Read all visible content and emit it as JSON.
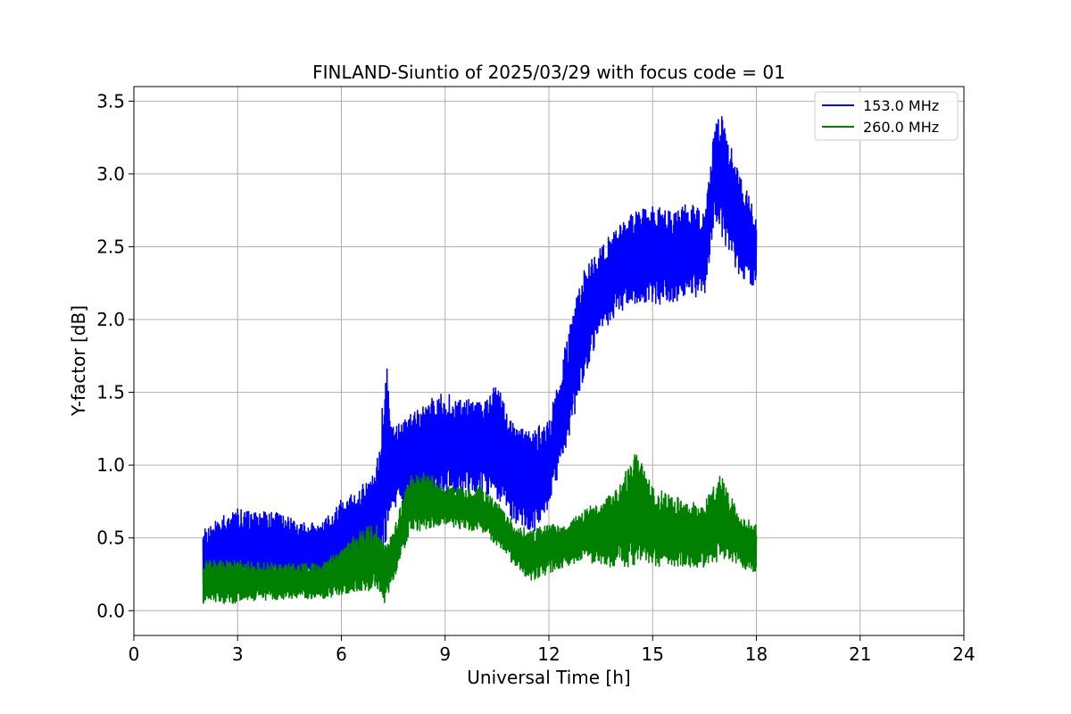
{
  "chart_data": {
    "type": "line",
    "title": "FINLAND-Siuntio of 2025/03/29 with focus code = 01",
    "xlabel": "Universal Time [h]",
    "ylabel": "Y-factor [dB]",
    "xlim": [
      0,
      24
    ],
    "ylim": [
      -0.17,
      3.6
    ],
    "xticks": [
      0,
      3,
      6,
      9,
      12,
      15,
      18,
      21,
      24
    ],
    "xtick_labels": [
      "0",
      "3",
      "6",
      "9",
      "12",
      "15",
      "18",
      "21",
      "24"
    ],
    "yticks": [
      0.0,
      0.5,
      1.0,
      1.5,
      2.0,
      2.5,
      3.0,
      3.5
    ],
    "ytick_labels": [
      "0.0",
      "0.5",
      "1.0",
      "1.5",
      "2.0",
      "2.5",
      "3.0",
      "3.5"
    ],
    "grid": true,
    "legend_position": "top-right",
    "series": [
      {
        "name": " 153.0 MHz",
        "color": "#0000ff",
        "x": [
          2.0,
          2.5,
          3.0,
          3.5,
          4.0,
          4.5,
          5.0,
          5.5,
          6.0,
          6.5,
          7.0,
          7.3,
          7.5,
          8.0,
          8.5,
          9.0,
          9.5,
          10.0,
          10.5,
          11.0,
          11.5,
          12.0,
          12.5,
          13.0,
          13.5,
          14.0,
          14.5,
          15.0,
          15.5,
          16.0,
          16.5,
          16.8,
          17.0,
          17.5,
          18.0
        ],
        "low": [
          0.05,
          0.2,
          0.2,
          0.2,
          0.2,
          0.2,
          0.2,
          0.2,
          0.25,
          0.3,
          0.35,
          0.4,
          0.7,
          0.75,
          0.8,
          0.8,
          0.8,
          0.8,
          0.75,
          0.6,
          0.5,
          0.7,
          1.1,
          1.6,
          1.9,
          2.05,
          2.1,
          2.1,
          2.1,
          2.15,
          2.15,
          2.7,
          2.55,
          2.3,
          2.2
        ],
        "high": [
          0.55,
          0.65,
          0.7,
          0.68,
          0.68,
          0.65,
          0.62,
          0.62,
          0.78,
          0.85,
          0.95,
          1.7,
          1.3,
          1.35,
          1.45,
          1.5,
          1.45,
          1.45,
          1.55,
          1.3,
          1.25,
          1.3,
          1.85,
          2.35,
          2.5,
          2.65,
          2.75,
          2.8,
          2.75,
          2.8,
          2.75,
          3.35,
          3.4,
          3.0,
          2.75
        ]
      },
      {
        "name": " 260.0 MHz",
        "color": "#008000",
        "x": [
          2.0,
          2.5,
          3.0,
          3.5,
          4.0,
          4.5,
          5.0,
          5.5,
          6.0,
          6.5,
          7.0,
          7.25,
          7.5,
          8.0,
          8.5,
          9.0,
          9.5,
          10.0,
          10.5,
          11.0,
          11.5,
          12.0,
          12.5,
          13.0,
          13.5,
          14.0,
          14.5,
          15.0,
          15.5,
          16.0,
          16.5,
          17.0,
          17.5,
          18.0
        ],
        "low": [
          0.05,
          0.05,
          0.05,
          0.07,
          0.07,
          0.08,
          0.08,
          0.08,
          0.1,
          0.12,
          0.15,
          0.05,
          0.2,
          0.55,
          0.55,
          0.6,
          0.55,
          0.55,
          0.45,
          0.3,
          0.2,
          0.25,
          0.3,
          0.35,
          0.3,
          0.3,
          0.3,
          0.3,
          0.3,
          0.3,
          0.3,
          0.35,
          0.3,
          0.25
        ],
        "high": [
          0.35,
          0.35,
          0.35,
          0.33,
          0.33,
          0.33,
          0.33,
          0.33,
          0.45,
          0.55,
          0.6,
          0.45,
          0.55,
          0.95,
          0.95,
          0.85,
          0.85,
          0.85,
          0.75,
          0.6,
          0.55,
          0.6,
          0.6,
          0.7,
          0.75,
          0.85,
          1.1,
          0.85,
          0.8,
          0.75,
          0.75,
          0.95,
          0.65,
          0.6
        ]
      }
    ]
  }
}
